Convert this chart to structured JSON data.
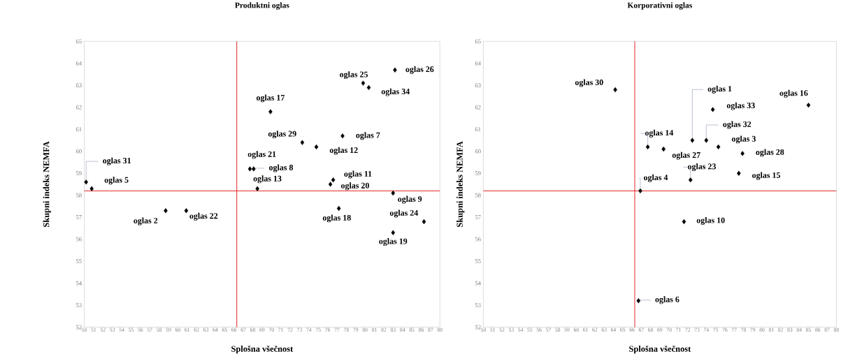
{
  "chart_data": [
    {
      "type": "scatter",
      "title": "Produktni oglas",
      "xlabel": "Splošna všečnost",
      "ylabel": "Skupni indeks NEMFA",
      "xlim": [
        50,
        88
      ],
      "ylim": [
        52,
        65
      ],
      "xticks": [
        50,
        51,
        52,
        53,
        54,
        55,
        56,
        57,
        58,
        59,
        60,
        61,
        62,
        63,
        64,
        65,
        66,
        67,
        68,
        69,
        70,
        71,
        72,
        73,
        74,
        75,
        76,
        77,
        78,
        79,
        80,
        81,
        82,
        83,
        84,
        85,
        86,
        87,
        88
      ],
      "yticks": [
        52,
        53,
        54,
        55,
        56,
        57,
        58,
        59,
        60,
        61,
        62,
        63,
        64,
        65
      ],
      "marker": "diamond",
      "ref_lines": [
        {
          "axis": "x",
          "value": 66.3,
          "color": "#e00000"
        },
        {
          "axis": "y",
          "value": 58.2,
          "color": "#e00000"
        }
      ],
      "series": [
        {
          "name": "oglas 31",
          "color": "#000000",
          "x": [
            50.2
          ],
          "values": [
            58.6
          ]
        },
        {
          "name": "oglas 5",
          "color": "#000000",
          "x": [
            50.8
          ],
          "values": [
            58.3
          ]
        },
        {
          "name": "oglas 2",
          "color": "#000000",
          "x": [
            58.7
          ],
          "values": [
            57.3
          ]
        },
        {
          "name": "oglas 22",
          "color": "#000000",
          "x": [
            60.9
          ],
          "values": [
            57.3
          ]
        },
        {
          "name": "oglas 17",
          "color": "#000000",
          "x": [
            69.9
          ],
          "values": [
            61.8
          ]
        },
        {
          "name": "oglas 29",
          "color": "#000000",
          "x": [
            73.3
          ],
          "values": [
            60.4
          ]
        },
        {
          "name": "oglas 12",
          "color": "#000000",
          "x": [
            74.8
          ],
          "values": [
            60.2
          ]
        },
        {
          "name": "oglas 7",
          "color": "#000000",
          "x": [
            77.6
          ],
          "values": [
            60.7
          ]
        },
        {
          "name": "oglas 21",
          "color": "#000000",
          "x": [
            67.7
          ],
          "values": [
            59.2
          ]
        },
        {
          "name": "oglas 8",
          "color": "#000000",
          "x": [
            68.1
          ],
          "values": [
            59.2
          ]
        },
        {
          "name": "oglas 13",
          "color": "#000000",
          "x": [
            68.5
          ],
          "values": [
            58.3
          ]
        },
        {
          "name": "oglas 11",
          "color": "#000000",
          "x": [
            76.6
          ],
          "values": [
            58.7
          ]
        },
        {
          "name": "oglas 20",
          "color": "#000000",
          "x": [
            76.3
          ],
          "values": [
            58.5
          ]
        },
        {
          "name": "oglas 9",
          "color": "#000000",
          "x": [
            83.0
          ],
          "values": [
            58.1
          ]
        },
        {
          "name": "oglas 18",
          "color": "#000000",
          "x": [
            77.2
          ],
          "values": [
            57.4
          ]
        },
        {
          "name": "oglas 24",
          "color": "#000000",
          "x": [
            86.3
          ],
          "values": [
            56.8
          ]
        },
        {
          "name": "oglas 19",
          "color": "#000000",
          "x": [
            83.0
          ],
          "values": [
            56.3
          ]
        },
        {
          "name": "oglas 25",
          "color": "#000000",
          "x": [
            79.8
          ],
          "values": [
            63.1
          ]
        },
        {
          "name": "oglas 34",
          "color": "#000000",
          "x": [
            80.4
          ],
          "values": [
            62.9
          ]
        },
        {
          "name": "oglas 26",
          "color": "#000000",
          "x": [
            83.2
          ],
          "values": [
            63.7
          ]
        }
      ]
    },
    {
      "type": "scatter",
      "title": "Korporativni oglas",
      "xlabel": "Splošna všečnost",
      "ylabel": "Skupni indeks NEMFA",
      "xlim": [
        50,
        88
      ],
      "ylim": [
        52,
        65
      ],
      "xticks": [
        50,
        51,
        52,
        53,
        54,
        55,
        56,
        57,
        58,
        59,
        60,
        61,
        62,
        63,
        64,
        65,
        66,
        67,
        68,
        69,
        70,
        71,
        72,
        73,
        74,
        75,
        76,
        77,
        78,
        79,
        80,
        81,
        82,
        83,
        84,
        85,
        86,
        87,
        88
      ],
      "yticks": [
        52,
        53,
        54,
        55,
        56,
        57,
        58,
        59,
        60,
        61,
        62,
        63,
        64,
        65
      ],
      "marker": "diamond",
      "ref_lines": [
        {
          "axis": "x",
          "value": 66.3,
          "color": "#e00000"
        },
        {
          "axis": "y",
          "value": 58.2,
          "color": "#e00000"
        }
      ],
      "series": [
        {
          "name": "oglas 30",
          "color": "#000000",
          "x": [
            64.2
          ],
          "values": [
            62.8
          ]
        },
        {
          "name": "oglas 1",
          "color": "#000000",
          "x": [
            72.5
          ],
          "values": [
            60.5
          ]
        },
        {
          "name": "oglas 32",
          "color": "#000000",
          "x": [
            74.0
          ],
          "values": [
            60.5
          ]
        },
        {
          "name": "oglas 3",
          "color": "#000000",
          "x": [
            75.3
          ],
          "values": [
            60.2
          ]
        },
        {
          "name": "oglas 33",
          "color": "#000000",
          "x": [
            74.7
          ],
          "values": [
            61.9
          ]
        },
        {
          "name": "oglas 16",
          "color": "#000000",
          "x": [
            85.0
          ],
          "values": [
            62.1
          ]
        },
        {
          "name": "oglas 14",
          "color": "#000000",
          "x": [
            67.7
          ],
          "values": [
            60.2
          ]
        },
        {
          "name": "oglas 27",
          "color": "#000000",
          "x": [
            69.4
          ],
          "values": [
            60.1
          ]
        },
        {
          "name": "oglas 28",
          "color": "#000000",
          "x": [
            77.9
          ],
          "values": [
            59.9
          ]
        },
        {
          "name": "oglas 15",
          "color": "#000000",
          "x": [
            77.5
          ],
          "values": [
            59.0
          ]
        },
        {
          "name": "oglas 23",
          "color": "#000000",
          "x": [
            72.3
          ],
          "values": [
            58.7
          ]
        },
        {
          "name": "oglas 4",
          "color": "#000000",
          "x": [
            66.9
          ],
          "values": [
            58.2
          ]
        },
        {
          "name": "oglas 10",
          "color": "#000000",
          "x": [
            71.6
          ],
          "values": [
            56.8
          ]
        },
        {
          "name": "oglas 6",
          "color": "#000000",
          "x": [
            66.7
          ],
          "values": [
            53.2
          ]
        }
      ]
    }
  ]
}
